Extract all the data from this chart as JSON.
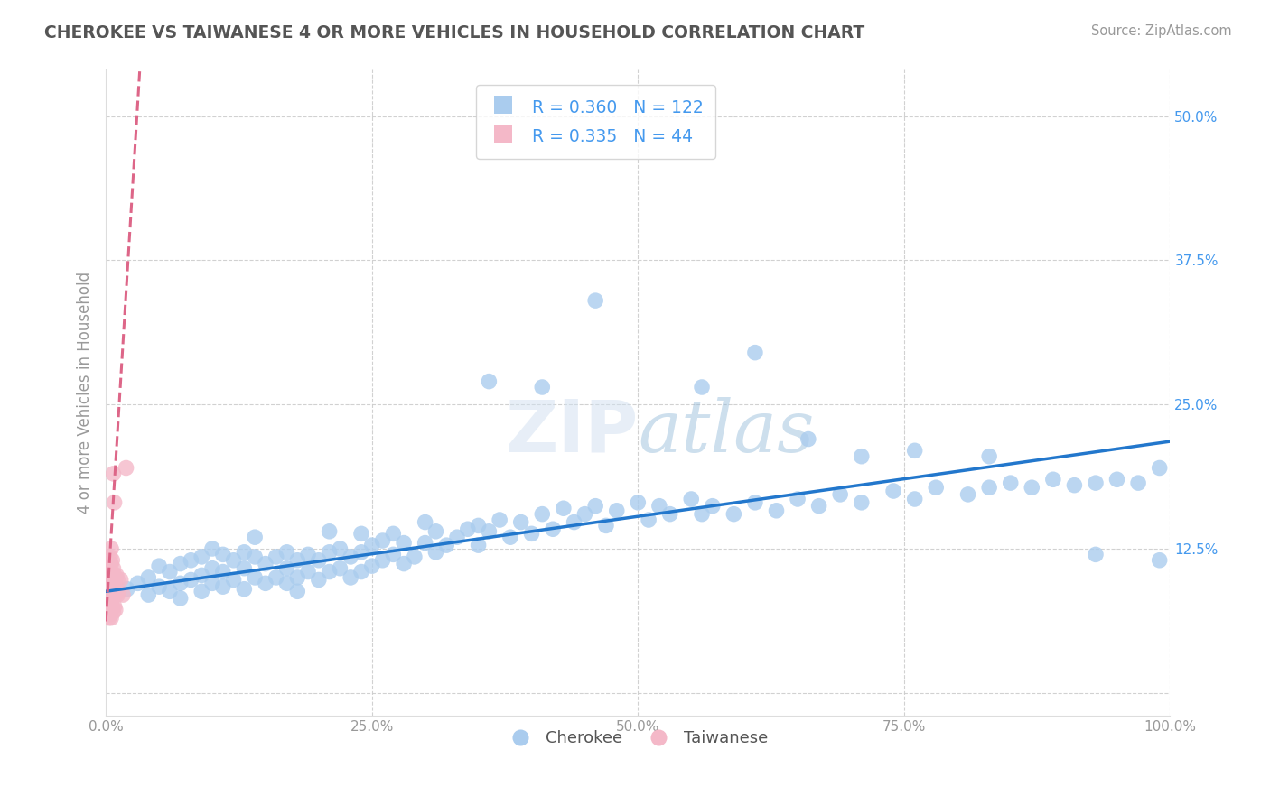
{
  "title": "CHEROKEE VS TAIWANESE 4 OR MORE VEHICLES IN HOUSEHOLD CORRELATION CHART",
  "source": "Source: ZipAtlas.com",
  "ylabel": "4 or more Vehicles in Household",
  "xlim": [
    0.0,
    1.0
  ],
  "ylim": [
    -0.02,
    0.54
  ],
  "xticks": [
    0.0,
    0.25,
    0.5,
    0.75,
    1.0
  ],
  "xticklabels": [
    "0.0%",
    "25.0%",
    "50.0%",
    "75.0%",
    "100.0%"
  ],
  "yticks": [
    0.0,
    0.125,
    0.25,
    0.375,
    0.5
  ],
  "yticklabels": [
    "",
    "12.5%",
    "25.0%",
    "37.5%",
    "50.0%"
  ],
  "cherokee_R": 0.36,
  "cherokee_N": 122,
  "taiwanese_R": 0.335,
  "taiwanese_N": 44,
  "cherokee_dot_color": "#aaccee",
  "taiwanese_dot_color": "#f4b8c8",
  "cherokee_line_color": "#2277cc",
  "taiwanese_line_color": "#dd6688",
  "background_color": "#ffffff",
  "grid_color": "#cccccc",
  "title_color": "#555555",
  "watermark_text": "ZIPatlas",
  "legend_color": "#4499ee",
  "cherokee_scatter_x": [
    0.02,
    0.03,
    0.04,
    0.04,
    0.05,
    0.05,
    0.06,
    0.06,
    0.07,
    0.07,
    0.07,
    0.08,
    0.08,
    0.09,
    0.09,
    0.09,
    0.1,
    0.1,
    0.1,
    0.11,
    0.11,
    0.11,
    0.12,
    0.12,
    0.13,
    0.13,
    0.13,
    0.14,
    0.14,
    0.14,
    0.15,
    0.15,
    0.16,
    0.16,
    0.17,
    0.17,
    0.17,
    0.18,
    0.18,
    0.18,
    0.19,
    0.19,
    0.2,
    0.2,
    0.21,
    0.21,
    0.21,
    0.22,
    0.22,
    0.23,
    0.23,
    0.24,
    0.24,
    0.24,
    0.25,
    0.25,
    0.26,
    0.26,
    0.27,
    0.27,
    0.28,
    0.28,
    0.29,
    0.3,
    0.3,
    0.31,
    0.31,
    0.32,
    0.33,
    0.34,
    0.35,
    0.35,
    0.36,
    0.37,
    0.38,
    0.39,
    0.4,
    0.41,
    0.42,
    0.43,
    0.44,
    0.45,
    0.46,
    0.47,
    0.48,
    0.5,
    0.51,
    0.52,
    0.53,
    0.55,
    0.56,
    0.57,
    0.59,
    0.61,
    0.63,
    0.65,
    0.67,
    0.69,
    0.71,
    0.74,
    0.76,
    0.78,
    0.81,
    0.83,
    0.85,
    0.87,
    0.89,
    0.91,
    0.93,
    0.95,
    0.97,
    0.99,
    0.36,
    0.41,
    0.46,
    0.56,
    0.61,
    0.66,
    0.71,
    0.76,
    0.83,
    0.93,
    0.99
  ],
  "cherokee_scatter_y": [
    0.09,
    0.095,
    0.1,
    0.085,
    0.092,
    0.11,
    0.088,
    0.105,
    0.095,
    0.112,
    0.082,
    0.098,
    0.115,
    0.088,
    0.102,
    0.118,
    0.095,
    0.108,
    0.125,
    0.092,
    0.105,
    0.12,
    0.098,
    0.115,
    0.09,
    0.108,
    0.122,
    0.1,
    0.118,
    0.135,
    0.095,
    0.112,
    0.1,
    0.118,
    0.095,
    0.108,
    0.122,
    0.1,
    0.115,
    0.088,
    0.105,
    0.12,
    0.098,
    0.115,
    0.105,
    0.122,
    0.14,
    0.108,
    0.125,
    0.1,
    0.118,
    0.105,
    0.122,
    0.138,
    0.11,
    0.128,
    0.115,
    0.132,
    0.12,
    0.138,
    0.112,
    0.13,
    0.118,
    0.13,
    0.148,
    0.122,
    0.14,
    0.128,
    0.135,
    0.142,
    0.128,
    0.145,
    0.14,
    0.15,
    0.135,
    0.148,
    0.138,
    0.155,
    0.142,
    0.16,
    0.148,
    0.155,
    0.162,
    0.145,
    0.158,
    0.165,
    0.15,
    0.162,
    0.155,
    0.168,
    0.155,
    0.162,
    0.155,
    0.165,
    0.158,
    0.168,
    0.162,
    0.172,
    0.165,
    0.175,
    0.168,
    0.178,
    0.172,
    0.178,
    0.182,
    0.178,
    0.185,
    0.18,
    0.182,
    0.185,
    0.182,
    0.195,
    0.27,
    0.265,
    0.34,
    0.265,
    0.295,
    0.22,
    0.205,
    0.21,
    0.205,
    0.12,
    0.115
  ],
  "taiwanese_scatter_x": [
    0.002,
    0.002,
    0.002,
    0.002,
    0.003,
    0.003,
    0.003,
    0.003,
    0.003,
    0.004,
    0.004,
    0.004,
    0.004,
    0.004,
    0.005,
    0.005,
    0.005,
    0.005,
    0.005,
    0.005,
    0.006,
    0.006,
    0.006,
    0.006,
    0.007,
    0.007,
    0.007,
    0.007,
    0.007,
    0.008,
    0.008,
    0.008,
    0.008,
    0.009,
    0.009,
    0.009,
    0.01,
    0.01,
    0.011,
    0.011,
    0.012,
    0.014,
    0.016,
    0.019
  ],
  "taiwanese_scatter_y": [
    0.088,
    0.095,
    0.075,
    0.108,
    0.085,
    0.098,
    0.072,
    0.112,
    0.065,
    0.09,
    0.102,
    0.078,
    0.118,
    0.068,
    0.085,
    0.098,
    0.072,
    0.112,
    0.065,
    0.125,
    0.088,
    0.102,
    0.075,
    0.115,
    0.085,
    0.098,
    0.07,
    0.108,
    0.19,
    0.088,
    0.102,
    0.075,
    0.165,
    0.085,
    0.098,
    0.072,
    0.088,
    0.102,
    0.085,
    0.098,
    0.088,
    0.098,
    0.085,
    0.195
  ],
  "cherokee_line_x0": 0.0,
  "cherokee_line_x1": 1.0,
  "cherokee_line_y0": 0.088,
  "cherokee_line_y1": 0.218,
  "taiwanese_line_x0": 0.0,
  "taiwanese_line_y0": 0.062,
  "taiwanese_line_slope": 15.0
}
